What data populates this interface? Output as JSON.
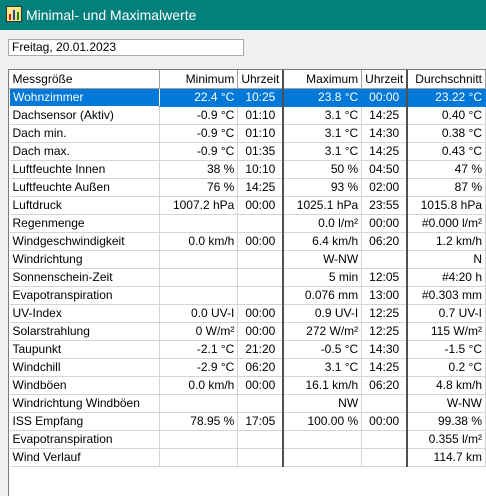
{
  "window": {
    "title": "Minimal- und Maximalwerte",
    "icon": "app-chart-icon"
  },
  "date": "Freitag, 20.01.2023",
  "table": {
    "headers": [
      "Messgröße",
      "Minimum",
      "Uhrzeit",
      "Maximum",
      "Uhrzeit",
      "Durchschnitt"
    ],
    "selected_row": 0,
    "rows": [
      [
        "Wohnzimmer",
        "22.4 °C",
        "10:25",
        "23.8 °C",
        "00:00",
        "23.22 °C"
      ],
      [
        "Dachsensor (Aktiv)",
        "-0.9 °C",
        "01:10",
        "3.1 °C",
        "14:25",
        "0.40 °C"
      ],
      [
        "Dach min.",
        "-0.9 °C",
        "01:10",
        "3.1 °C",
        "14:30",
        "0.38 °C"
      ],
      [
        "Dach max.",
        "-0.9 °C",
        "01:35",
        "3.1 °C",
        "14:25",
        "0.43 °C"
      ],
      [
        "Luftfeuchte Innen",
        "38 %",
        "10:10",
        "50 %",
        "04:50",
        "47 %"
      ],
      [
        "Luftfeuchte Außen",
        "76 %",
        "14:25",
        "93 %",
        "02:00",
        "87 %"
      ],
      [
        "Luftdruck",
        "1007.2 hPa",
        "00:00",
        "1025.1 hPa",
        "23:55",
        "1015.8 hPa"
      ],
      [
        "Regenmenge",
        "",
        "",
        "0.0 l/m²",
        "00:00",
        "#0.000 l/m²"
      ],
      [
        "Windgeschwindigkeit",
        "0.0 km/h",
        "00:00",
        "6.4 km/h",
        "06:20",
        "1.2 km/h"
      ],
      [
        "Windrichtung",
        "",
        "",
        "W-NW",
        "",
        "N"
      ],
      [
        "Sonnenschein-Zeit",
        "",
        "",
        "5 min",
        "12:05",
        "#4:20 h"
      ],
      [
        "Evapotranspiration",
        "",
        "",
        "0.076 mm",
        "13:00",
        "#0.303 mm"
      ],
      [
        "UV-Index",
        "0.0 UV-I",
        "00:00",
        "0.9 UV-I",
        "12:25",
        "0.7 UV-I"
      ],
      [
        "Solarstrahlung",
        "0 W/m²",
        "00:00",
        "272 W/m²",
        "12:25",
        "115 W/m²"
      ],
      [
        "Taupunkt",
        "-2.1 °C",
        "21:20",
        "-0.5 °C",
        "14:30",
        "-1.5 °C"
      ],
      [
        "Windchill",
        "-2.9 °C",
        "06:20",
        "3.1 °C",
        "14:25",
        "0.2 °C"
      ],
      [
        "Windböen",
        "0.0 km/h",
        "00:00",
        "16.1 km/h",
        "06:20",
        "4.8 km/h"
      ],
      [
        "Windrichtung Windböen",
        "",
        "",
        "NW",
        "",
        "W-NW"
      ],
      [
        "ISS Empfang",
        "78.95 %",
        "17:05",
        "100.00 %",
        "00:00",
        "99.38 %"
      ],
      [
        "Evapotranspiration",
        "",
        "",
        "",
        "",
        "0.355 l/m²"
      ],
      [
        "Wind Verlauf",
        "",
        "",
        "",
        "",
        "114.7 km"
      ]
    ]
  }
}
